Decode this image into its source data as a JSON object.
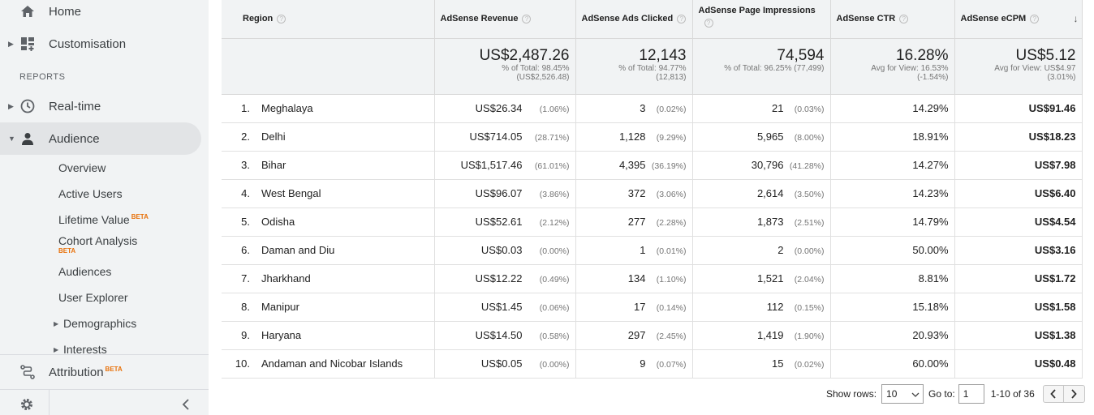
{
  "sidebar": {
    "home": "Home",
    "customisation": "Customisation",
    "reports_heading": "REPORTS",
    "realtime": "Real-time",
    "audience": "Audience",
    "sub_items": [
      "Overview",
      "Active Users",
      "Lifetime Value",
      "Cohort Analysis",
      "Audiences",
      "User Explorer",
      "Demographics",
      "Interests"
    ],
    "beta": "BETA",
    "attribution": "Attribution"
  },
  "table": {
    "headers": [
      "Region",
      "AdSense Revenue",
      "AdSense Ads Clicked",
      "AdSense Page Impressions",
      "AdSense CTR",
      "AdSense eCPM"
    ],
    "totals": [
      {
        "value": "US$2,487.26",
        "line1": "% of Total: 98.45%",
        "line2": "(US$2,526.48)"
      },
      {
        "value": "12,143",
        "line1": "% of Total: 94.77%",
        "line2": "(12,813)"
      },
      {
        "value": "74,594",
        "line1": "% of Total: 96.25% (77,499)",
        "line2": ""
      },
      {
        "value": "16.28%",
        "line1": "Avg for View: 16.53%",
        "line2": "(-1.54%)"
      },
      {
        "value": "US$5.12",
        "line1": "Avg for View: US$4.97",
        "line2": "(3.01%)"
      }
    ],
    "rows": [
      {
        "idx": "1.",
        "region": "Meghalaya",
        "revenue": "US$26.34",
        "revenue_pct": "(1.06%)",
        "clicks": "3",
        "clicks_pct": "(0.02%)",
        "impr": "21",
        "impr_pct": "(0.03%)",
        "ctr": "14.29%",
        "ecpm": "US$91.46"
      },
      {
        "idx": "2.",
        "region": "Delhi",
        "revenue": "US$714.05",
        "revenue_pct": "(28.71%)",
        "clicks": "1,128",
        "clicks_pct": "(9.29%)",
        "impr": "5,965",
        "impr_pct": "(8.00%)",
        "ctr": "18.91%",
        "ecpm": "US$18.23"
      },
      {
        "idx": "3.",
        "region": "Bihar",
        "revenue": "US$1,517.46",
        "revenue_pct": "(61.01%)",
        "clicks": "4,395",
        "clicks_pct": "(36.19%)",
        "impr": "30,796",
        "impr_pct": "(41.28%)",
        "ctr": "14.27%",
        "ecpm": "US$7.98"
      },
      {
        "idx": "4.",
        "region": "West Bengal",
        "revenue": "US$96.07",
        "revenue_pct": "(3.86%)",
        "clicks": "372",
        "clicks_pct": "(3.06%)",
        "impr": "2,614",
        "impr_pct": "(3.50%)",
        "ctr": "14.23%",
        "ecpm": "US$6.40"
      },
      {
        "idx": "5.",
        "region": "Odisha",
        "revenue": "US$52.61",
        "revenue_pct": "(2.12%)",
        "clicks": "277",
        "clicks_pct": "(2.28%)",
        "impr": "1,873",
        "impr_pct": "(2.51%)",
        "ctr": "14.79%",
        "ecpm": "US$4.54"
      },
      {
        "idx": "6.",
        "region": "Daman and Diu",
        "revenue": "US$0.03",
        "revenue_pct": "(0.00%)",
        "clicks": "1",
        "clicks_pct": "(0.01%)",
        "impr": "2",
        "impr_pct": "(0.00%)",
        "ctr": "50.00%",
        "ecpm": "US$3.16"
      },
      {
        "idx": "7.",
        "region": "Jharkhand",
        "revenue": "US$12.22",
        "revenue_pct": "(0.49%)",
        "clicks": "134",
        "clicks_pct": "(1.10%)",
        "impr": "1,521",
        "impr_pct": "(2.04%)",
        "ctr": "8.81%",
        "ecpm": "US$1.72"
      },
      {
        "idx": "8.",
        "region": "Manipur",
        "revenue": "US$1.45",
        "revenue_pct": "(0.06%)",
        "clicks": "17",
        "clicks_pct": "(0.14%)",
        "impr": "112",
        "impr_pct": "(0.15%)",
        "ctr": "15.18%",
        "ecpm": "US$1.58"
      },
      {
        "idx": "9.",
        "region": "Haryana",
        "revenue": "US$14.50",
        "revenue_pct": "(0.58%)",
        "clicks": "297",
        "clicks_pct": "(2.45%)",
        "impr": "1,419",
        "impr_pct": "(1.90%)",
        "ctr": "20.93%",
        "ecpm": "US$1.38"
      },
      {
        "idx": "10.",
        "region": "Andaman and Nicobar Islands",
        "revenue": "US$0.05",
        "revenue_pct": "(0.00%)",
        "clicks": "9",
        "clicks_pct": "(0.07%)",
        "impr": "15",
        "impr_pct": "(0.02%)",
        "ctr": "60.00%",
        "ecpm": "US$0.48"
      }
    ]
  },
  "pager": {
    "show_rows_label": "Show rows:",
    "show_rows_value": "10",
    "goto_label": "Go to:",
    "goto_value": "1",
    "range": "1-10 of 36"
  },
  "icons": {
    "home": "home-icon",
    "customisation": "dashboard-icon",
    "realtime": "clock-icon",
    "audience": "person-icon",
    "attribution": "attribution-icon",
    "settings": "gear-icon",
    "collapse": "chevron-left-icon"
  }
}
